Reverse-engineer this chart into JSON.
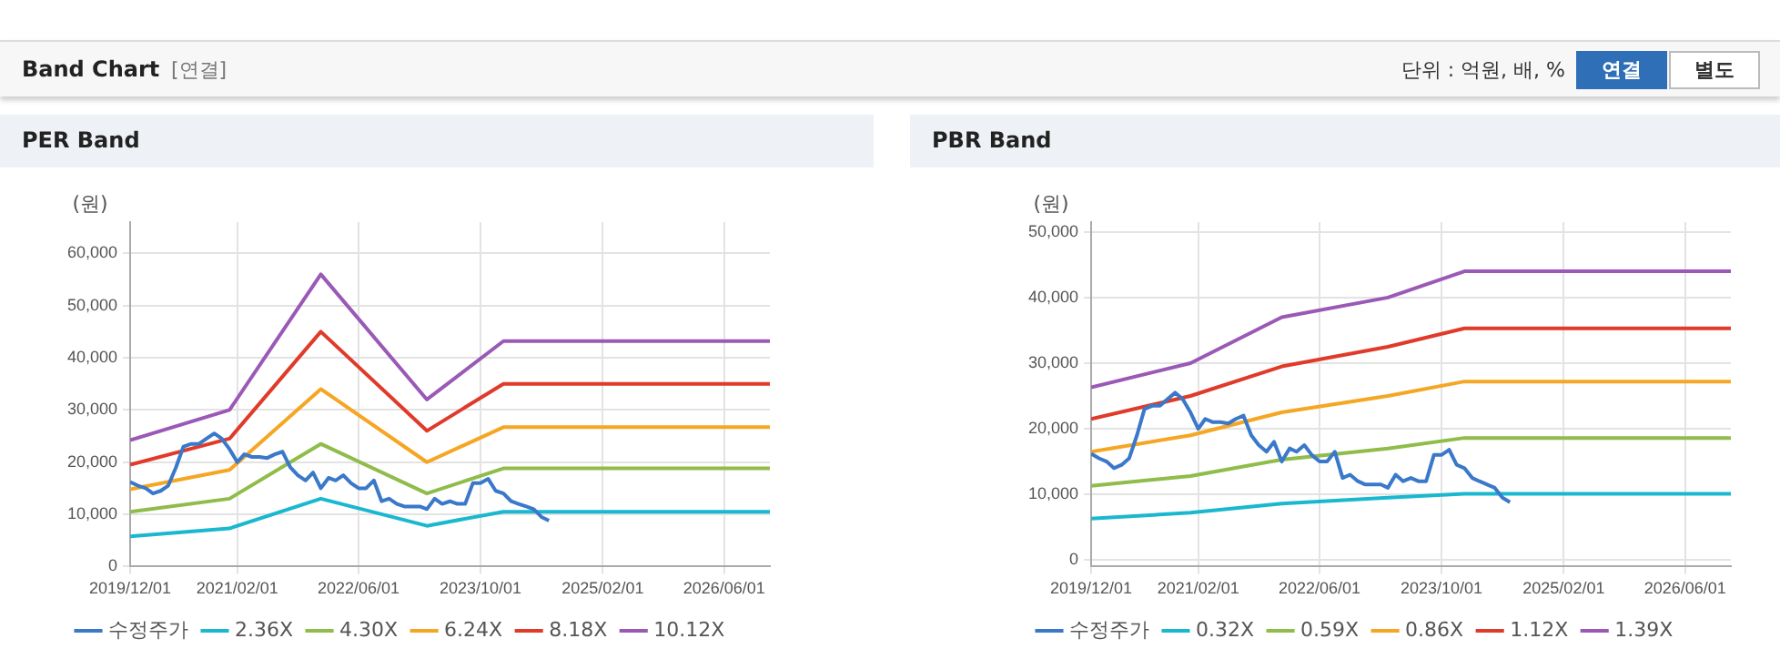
{
  "chart_data": [
    {
      "type": "line",
      "title": "PER Band",
      "ylabel": "(원)",
      "annotations": [
        "Band Chart",
        "[연결]",
        "단위 : 억원, 배, %",
        "연결",
        "별도"
      ],
      "legend": "bottom",
      "grid": true,
      "xlim": [
        "2019-12-01",
        "2026-12-01"
      ],
      "ylim": [
        0,
        66000
      ],
      "xticks": [
        {
          "value": "2019-12-01",
          "label": "2019/12/01"
        },
        {
          "value": "2021-02-01",
          "label": "2021/02/01"
        },
        {
          "value": "2022-06-01",
          "label": "2022/06/01"
        },
        {
          "value": "2023-10-01",
          "label": "2023/10/01"
        },
        {
          "value": "2025-02-01",
          "label": "2025/02/01"
        },
        {
          "value": "2026-06-01",
          "label": "2026/06/01"
        }
      ],
      "yticks": [
        0,
        {
          "value": 10000,
          "label": "10,000"
        },
        {
          "value": 20000,
          "label": "20,000"
        },
        {
          "value": 30000,
          "label": "30,000"
        },
        {
          "value": 40000,
          "label": "40,000"
        },
        {
          "value": 50000,
          "label": "50,000"
        },
        {
          "value": 60000,
          "label": "60,000"
        }
      ],
      "series": [
        {
          "name": "수정주가",
          "color": "#3a78c9",
          "x": [
            "2019-12-01",
            "2020-01-01",
            "2020-02-01",
            "2020-03-01",
            "2020-04-01",
            "2020-05-01",
            "2020-06-01",
            "2020-07-01",
            "2020-08-01",
            "2020-09-01",
            "2020-10-01",
            "2020-11-01",
            "2020-12-01",
            "2021-01-01",
            "2021-02-01",
            "2021-03-01",
            "2021-04-01",
            "2021-05-01",
            "2021-06-01",
            "2021-07-01",
            "2021-08-01",
            "2021-09-01",
            "2021-10-01",
            "2021-11-01",
            "2021-12-01",
            "2022-01-01",
            "2022-02-01",
            "2022-03-01",
            "2022-04-01",
            "2022-05-01",
            "2022-06-01",
            "2022-07-01",
            "2022-08-01",
            "2022-09-01",
            "2022-10-01",
            "2022-11-01",
            "2022-12-01",
            "2023-01-01",
            "2023-02-01",
            "2023-03-01",
            "2023-04-01",
            "2023-05-01",
            "2023-06-01",
            "2023-07-01",
            "2023-08-01",
            "2023-09-01",
            "2023-10-01",
            "2023-11-01",
            "2023-12-01",
            "2024-01-01",
            "2024-02-01",
            "2024-03-01",
            "2024-04-01",
            "2024-05-01",
            "2024-06-01",
            "2024-07-01"
          ],
          "values": [
            16200,
            15500,
            15000,
            14000,
            14500,
            15500,
            19000,
            23000,
            23500,
            23500,
            24500,
            25500,
            24500,
            22500,
            20000,
            21500,
            21000,
            21000,
            20800,
            21500,
            22000,
            19000,
            17500,
            16500,
            18000,
            15000,
            17000,
            16500,
            17500,
            16000,
            15000,
            15000,
            16500,
            12500,
            13000,
            12000,
            11500,
            11500,
            11500,
            11000,
            13000,
            12000,
            12500,
            12000,
            12000,
            16000,
            16000,
            16800,
            14500,
            14000,
            12500,
            12000,
            11500,
            11000,
            9500,
            8800
          ]
        },
        {
          "name": "2.36X",
          "color": "#1ab8cf",
          "x": [
            "2019-12-01",
            "2021-01-01",
            "2022-01-01",
            "2023-03-01",
            "2024-01-01",
            "2026-12-01"
          ],
          "values": [
            5800,
            7300,
            13000,
            7800,
            10500,
            10500
          ]
        },
        {
          "name": "4.30X",
          "color": "#8fbc4a",
          "x": [
            "2019-12-01",
            "2021-01-01",
            "2022-01-01",
            "2023-03-01",
            "2024-01-01",
            "2026-12-01"
          ],
          "values": [
            10500,
            13000,
            23500,
            14000,
            18800,
            18800
          ]
        },
        {
          "name": "6.24X",
          "color": "#f5a623",
          "x": [
            "2019-12-01",
            "2021-01-01",
            "2022-01-01",
            "2023-03-01",
            "2024-01-01",
            "2026-12-01"
          ],
          "values": [
            14800,
            18500,
            34000,
            20000,
            26700,
            26700
          ]
        },
        {
          "name": "8.18X",
          "color": "#e03a2a",
          "x": [
            "2019-12-01",
            "2021-01-01",
            "2022-01-01",
            "2023-03-01",
            "2024-01-01",
            "2026-12-01"
          ],
          "values": [
            19500,
            24500,
            45000,
            26000,
            35000,
            35000
          ]
        },
        {
          "name": "10.12X",
          "color": "#9b59b6",
          "x": [
            "2019-12-01",
            "2021-01-01",
            "2022-01-01",
            "2023-03-01",
            "2024-01-01",
            "2026-12-01"
          ],
          "values": [
            24200,
            30000,
            56000,
            32000,
            43200,
            43200
          ]
        }
      ]
    },
    {
      "type": "line",
      "title": "PBR Band",
      "ylabel": "(원)",
      "legend": "bottom",
      "grid": true,
      "xlim": [
        "2019-12-01",
        "2026-12-01"
      ],
      "ylim": [
        -1000,
        51500
      ],
      "xticks": [
        {
          "value": "2019-12-01",
          "label": "2019/12/01"
        },
        {
          "value": "2021-02-01",
          "label": "2021/02/01"
        },
        {
          "value": "2022-06-01",
          "label": "2022/06/01"
        },
        {
          "value": "2023-10-01",
          "label": "2023/10/01"
        },
        {
          "value": "2025-02-01",
          "label": "2025/02/01"
        },
        {
          "value": "2026-06-01",
          "label": "2026/06/01"
        }
      ],
      "yticks": [
        0,
        {
          "value": 10000,
          "label": "10,000"
        },
        {
          "value": 20000,
          "label": "20,000"
        },
        {
          "value": 30000,
          "label": "30,000"
        },
        {
          "value": 40000,
          "label": "40,000"
        },
        {
          "value": 50000,
          "label": "50,000"
        }
      ],
      "series": [
        {
          "name": "수정주가",
          "color": "#3a78c9",
          "x": [
            "2019-12-01",
            "2020-01-01",
            "2020-02-01",
            "2020-03-01",
            "2020-04-01",
            "2020-05-01",
            "2020-06-01",
            "2020-07-01",
            "2020-08-01",
            "2020-09-01",
            "2020-10-01",
            "2020-11-01",
            "2020-12-01",
            "2021-01-01",
            "2021-02-01",
            "2021-03-01",
            "2021-04-01",
            "2021-05-01",
            "2021-06-01",
            "2021-07-01",
            "2021-08-01",
            "2021-09-01",
            "2021-10-01",
            "2021-11-01",
            "2021-12-01",
            "2022-01-01",
            "2022-02-01",
            "2022-03-01",
            "2022-04-01",
            "2022-05-01",
            "2022-06-01",
            "2022-07-01",
            "2022-08-01",
            "2022-09-01",
            "2022-10-01",
            "2022-11-01",
            "2022-12-01",
            "2023-01-01",
            "2023-02-01",
            "2023-03-01",
            "2023-04-01",
            "2023-05-01",
            "2023-06-01",
            "2023-07-01",
            "2023-08-01",
            "2023-09-01",
            "2023-10-01",
            "2023-11-01",
            "2023-12-01",
            "2024-01-01",
            "2024-02-01",
            "2024-03-01",
            "2024-04-01",
            "2024-05-01",
            "2024-06-01",
            "2024-07-01"
          ],
          "values": [
            16200,
            15500,
            15000,
            14000,
            14500,
            15500,
            19000,
            23000,
            23500,
            23500,
            24500,
            25500,
            24500,
            22500,
            20000,
            21500,
            21000,
            21000,
            20800,
            21500,
            22000,
            19000,
            17500,
            16500,
            18000,
            15000,
            17000,
            16500,
            17500,
            16000,
            15000,
            15000,
            16500,
            12500,
            13000,
            12000,
            11500,
            11500,
            11500,
            11000,
            13000,
            12000,
            12500,
            12000,
            12000,
            16000,
            16000,
            16800,
            14500,
            14000,
            12500,
            12000,
            11500,
            11000,
            9500,
            8800
          ]
        },
        {
          "name": "0.32X",
          "color": "#1ab8cf",
          "x": [
            "2019-12-01",
            "2021-01-01",
            "2022-01-01",
            "2023-03-01",
            "2024-01-01",
            "2026-12-01"
          ],
          "values": [
            6300,
            7200,
            8600,
            9500,
            10100,
            10100
          ]
        },
        {
          "name": "0.59X",
          "color": "#8fbc4a",
          "x": [
            "2019-12-01",
            "2021-01-01",
            "2022-01-01",
            "2023-03-01",
            "2024-01-01",
            "2026-12-01"
          ],
          "values": [
            11300,
            12800,
            15300,
            17000,
            18600,
            18600
          ]
        },
        {
          "name": "0.86X",
          "color": "#f5a623",
          "x": [
            "2019-12-01",
            "2021-01-01",
            "2022-01-01",
            "2023-03-01",
            "2024-01-01",
            "2026-12-01"
          ],
          "values": [
            16500,
            19000,
            22500,
            25000,
            27200,
            27200
          ]
        },
        {
          "name": "1.12X",
          "color": "#e03a2a",
          "x": [
            "2019-12-01",
            "2021-01-01",
            "2022-01-01",
            "2023-03-01",
            "2024-01-01",
            "2026-12-01"
          ],
          "values": [
            21500,
            25000,
            29500,
            32500,
            35300,
            35300
          ]
        },
        {
          "name": "1.39X",
          "color": "#9b59b6",
          "x": [
            "2019-12-01",
            "2021-01-01",
            "2022-01-01",
            "2023-03-01",
            "2024-01-01",
            "2026-12-01"
          ],
          "values": [
            26300,
            30000,
            37000,
            40000,
            44000,
            44000
          ]
        }
      ]
    }
  ]
}
